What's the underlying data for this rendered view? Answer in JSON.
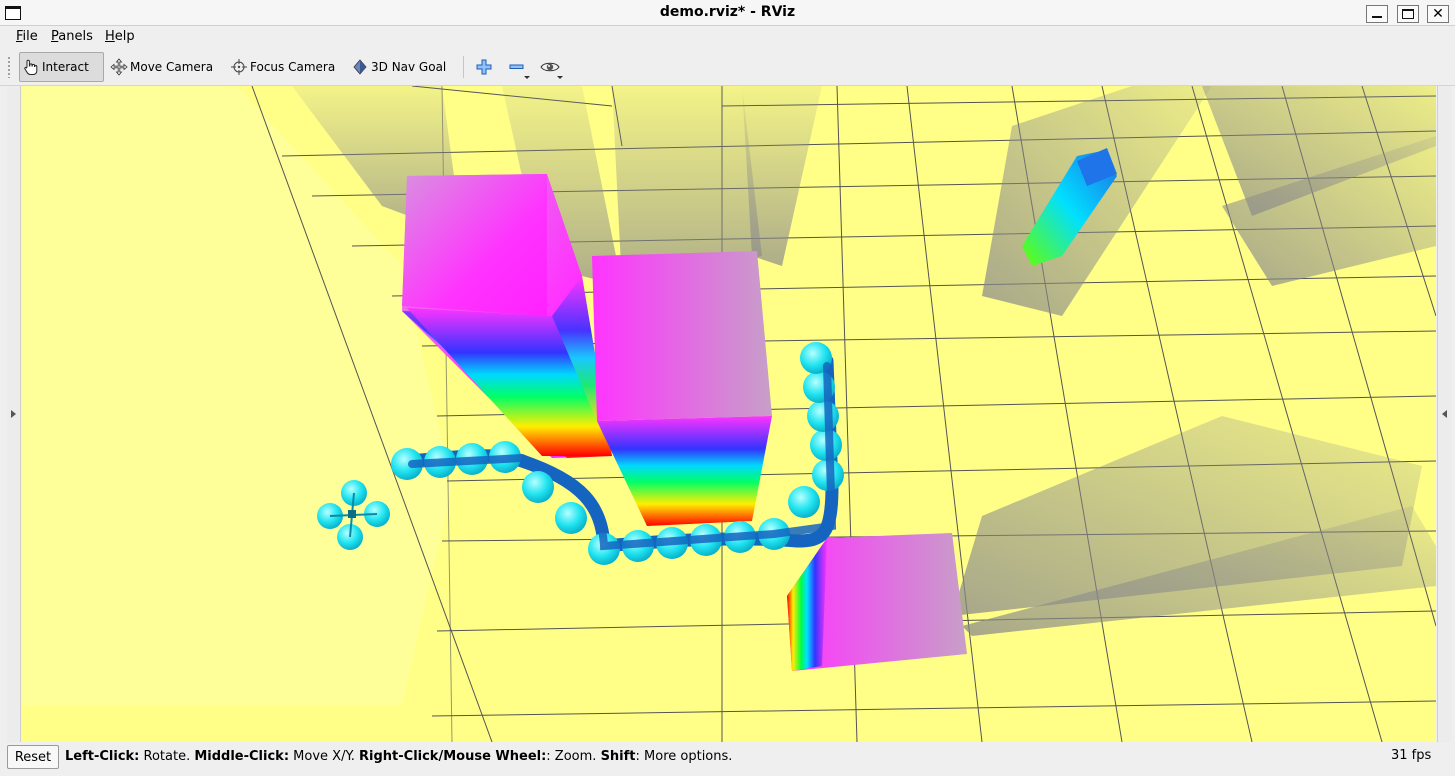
{
  "window": {
    "title": "demo.rviz* - RViz",
    "close_glyph": "✕"
  },
  "menu": {
    "items": [
      {
        "label": "File",
        "mnemonic": "F",
        "rest": "ile"
      },
      {
        "label": "Panels",
        "mnemonic": "P",
        "rest": "anels"
      },
      {
        "label": "Help",
        "mnemonic": "H",
        "rest": "elp"
      }
    ]
  },
  "toolbar": {
    "tools": [
      {
        "label": "Interact",
        "icon": "hand-pointer-icon",
        "active": true
      },
      {
        "label": "Move Camera",
        "icon": "move-arrows-icon",
        "active": false
      },
      {
        "label": "Focus Camera",
        "icon": "crosshair-icon",
        "active": false
      },
      {
        "label": "3D Nav Goal",
        "icon": "diamond-icon",
        "active": false
      }
    ],
    "extra_icons": [
      "plus-icon",
      "minus-icon",
      "eye-icon"
    ]
  },
  "status": {
    "reset_label": "Reset",
    "hint": [
      {
        "bold": "Left-Click:",
        "text": " Rotate. "
      },
      {
        "bold": "Middle-Click:",
        "text": " Move X/Y. "
      },
      {
        "bold": "Right-Click/Mouse Wheel:",
        "text": ": Zoom. "
      },
      {
        "bold": "Shift",
        "text": ": More options."
      }
    ],
    "fps": "31 fps"
  },
  "colors": {
    "ground": "#ffff88",
    "grid": "#555555",
    "path": "#1565c0",
    "waypoint": "#19e6f0",
    "obstacle_top": "#ff22ff"
  }
}
